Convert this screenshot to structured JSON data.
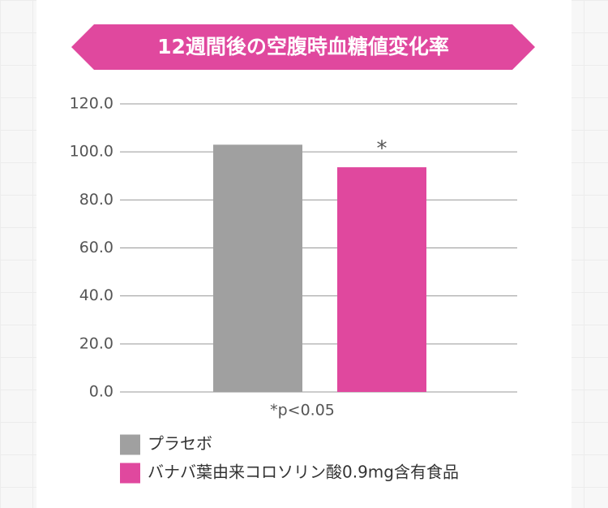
{
  "chart_data": {
    "type": "bar",
    "title": "12週間後の空腹時血糖値変化率",
    "categories": [
      null
    ],
    "series": [
      {
        "name": "プラセボ",
        "color": "#a0a0a0",
        "values": [
          103
        ]
      },
      {
        "name": "バナバ葉由来コロソリン酸0.9mg含有食品",
        "color": "#e0489e",
        "values": [
          93.6
        ]
      }
    ],
    "significance_mark": "*",
    "note": "*p<0.05",
    "ylim": [
      0,
      120
    ],
    "yticks": [
      {
        "value": 0,
        "label": "0.0"
      },
      {
        "value": 20,
        "label": "20.0"
      },
      {
        "value": 40,
        "label": "40.0"
      },
      {
        "value": 60,
        "label": "60.0"
      },
      {
        "value": 80,
        "label": "80.0"
      },
      {
        "value": 100,
        "label": "100.0"
      },
      {
        "value": 120,
        "label": "120.0"
      }
    ],
    "grid": true
  }
}
